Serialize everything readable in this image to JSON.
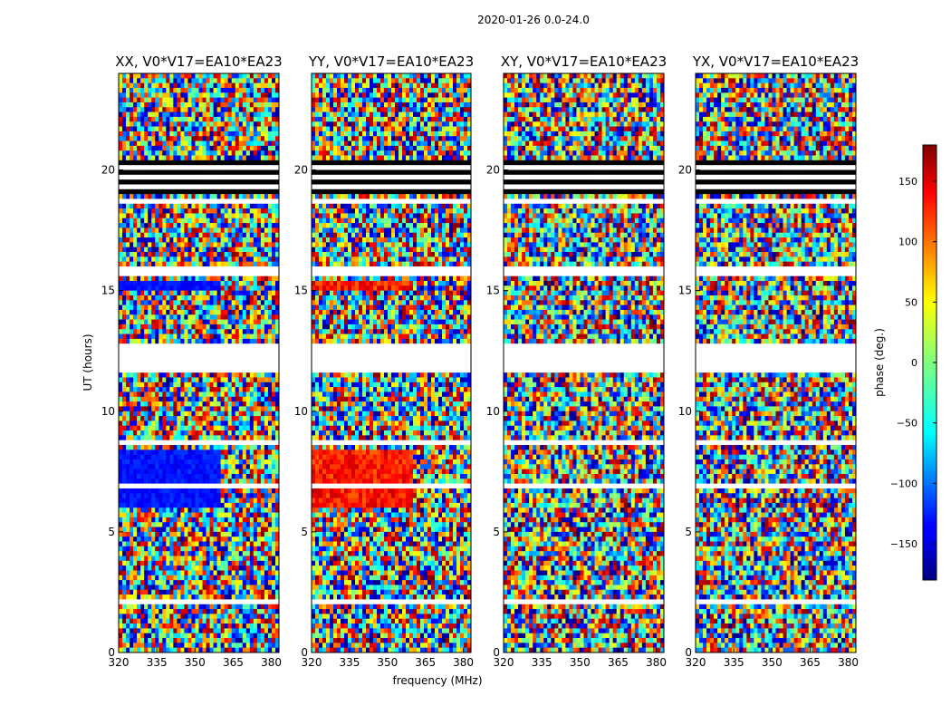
{
  "chart_data": {
    "type": "heatmap",
    "suptitle": "2020-01-26 0.0-24.0",
    "xlabel": "frequency (MHz)",
    "ylabel": "UT (hours)",
    "xlim": [
      320,
      383
    ],
    "ylim": [
      0,
      24
    ],
    "xticks": [
      320,
      335,
      350,
      365,
      380
    ],
    "yticks": [
      0,
      5,
      10,
      15,
      20
    ],
    "panels": [
      {
        "title": "XX, V0*V17=EA10*EA23"
      },
      {
        "title": "YY, V0*V17=EA10*EA23"
      },
      {
        "title": "XY, V0*V17=EA10*EA23"
      },
      {
        "title": "YX, V0*V17=EA10*EA23"
      }
    ],
    "colorbar": {
      "label": "phase (deg.)",
      "range": [
        -180,
        180
      ],
      "ticks": [
        150,
        100,
        50,
        0,
        -50,
        -100,
        -150
      ],
      "tick_labels": [
        "150",
        "100",
        "50",
        "0",
        "−50",
        "−100",
        "−150"
      ]
    }
  }
}
